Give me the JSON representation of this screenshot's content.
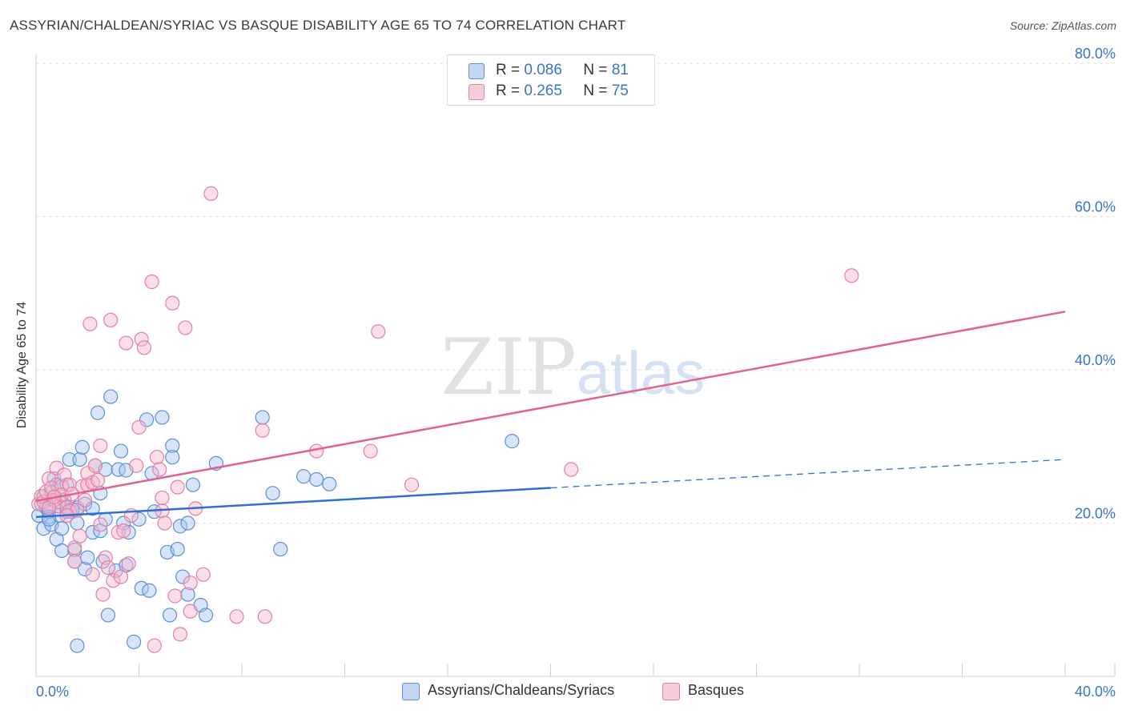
{
  "title": "ASSYRIAN/CHALDEAN/SYRIAC VS BASQUE DISABILITY AGE 65 TO 74 CORRELATION CHART",
  "source": "Source: ZipAtlas.com",
  "watermark": {
    "zip": "ZIP",
    "atlas": "atlas"
  },
  "legend": {
    "rows": [
      {
        "r_label": "R =",
        "r_value": "0.086",
        "n_label": "N =",
        "n_value": "81"
      },
      {
        "r_label": "R =",
        "r_value": "0.265",
        "n_label": "N =",
        "n_value": "75"
      }
    ]
  },
  "bottom_legend": {
    "series1": "Assyrians/Chaldeans/Syriacs",
    "series2": "Basques"
  },
  "colors": {
    "blue_fill": "#a8c6f0",
    "blue_stroke": "#5b8fd8",
    "blue_line": "#2f6fcf",
    "pink_fill": "#f6b8cc",
    "pink_stroke": "#e57fa1",
    "pink_line": "#e0628f",
    "axis_text": "#3b73c9",
    "grid": "#e0e0e0"
  },
  "chart_data": {
    "type": "scatter",
    "title": "ASSYRIAN/CHALDEAN/SYRIAC VS BASQUE DISABILITY AGE 65 TO 74 CORRELATION CHART",
    "xlabel": "",
    "ylabel": "Disability Age 65 to 74",
    "xlim": [
      0,
      40
    ],
    "ylim": [
      0,
      82
    ],
    "x_tick_labels": [
      "0.0%",
      "40.0%"
    ],
    "y_ticks": [
      20,
      40,
      60,
      80
    ],
    "y_tick_labels": [
      "20.0%",
      "40.0%",
      "60.0%",
      "80.0%"
    ],
    "grid": true,
    "series": [
      {
        "name": "Assyrians/Chaldeans/Syriacs",
        "R": 0.086,
        "N": 81,
        "trend": {
          "x0": 0,
          "y0": 20.8,
          "x1": 20,
          "y1": 24.6,
          "dashed_to_x": 40,
          "dashed_to_y": 28.3
        },
        "points": [
          [
            0.1,
            21
          ],
          [
            0.2,
            22.5
          ],
          [
            0.3,
            19.3
          ],
          [
            0.3,
            23.5
          ],
          [
            0.4,
            22
          ],
          [
            0.5,
            21.5
          ],
          [
            0.5,
            20.8
          ],
          [
            0.6,
            19.8
          ],
          [
            0.7,
            23
          ],
          [
            0.7,
            25.8
          ],
          [
            0.8,
            25
          ],
          [
            0.8,
            17.9
          ],
          [
            0.9,
            21
          ],
          [
            1,
            19.3
          ],
          [
            1,
            16.4
          ],
          [
            1.2,
            21.5
          ],
          [
            1.2,
            22
          ],
          [
            1.2,
            25
          ],
          [
            1.3,
            28.3
          ],
          [
            1.4,
            21.5
          ],
          [
            1.5,
            16.5
          ],
          [
            1.5,
            15
          ],
          [
            1.6,
            22
          ],
          [
            1.6,
            20
          ],
          [
            1.7,
            28.3
          ],
          [
            1.8,
            29.9
          ],
          [
            1.9,
            22.5
          ],
          [
            1.9,
            14
          ],
          [
            2,
            15.5
          ],
          [
            2.2,
            18.8
          ],
          [
            2.2,
            21.9
          ],
          [
            2.3,
            27.5
          ],
          [
            2.4,
            34.4
          ],
          [
            2.5,
            19
          ],
          [
            2.5,
            23.9
          ],
          [
            2.6,
            15
          ],
          [
            2.7,
            27
          ],
          [
            2.8,
            8
          ],
          [
            2.9,
            36.5
          ],
          [
            3.1,
            13.8
          ],
          [
            3.2,
            27
          ],
          [
            3.3,
            29.4
          ],
          [
            3.4,
            20
          ],
          [
            3.5,
            14.5
          ],
          [
            3.5,
            26.9
          ],
          [
            3.6,
            18.8
          ],
          [
            3.8,
            4.5
          ],
          [
            4,
            20.5
          ],
          [
            4.1,
            11.5
          ],
          [
            4.3,
            33.5
          ],
          [
            4.4,
            11.2
          ],
          [
            4.5,
            26.5
          ],
          [
            4.6,
            21.5
          ],
          [
            4.9,
            33.8
          ],
          [
            5.1,
            16.2
          ],
          [
            5.2,
            8
          ],
          [
            5.3,
            30.1
          ],
          [
            5.3,
            28.6
          ],
          [
            5.5,
            16.6
          ],
          [
            5.6,
            19.6
          ],
          [
            5.7,
            13
          ],
          [
            5.9,
            10.7
          ],
          [
            5.9,
            20
          ],
          [
            6.1,
            25
          ],
          [
            6.4,
            9.3
          ],
          [
            6.6,
            8
          ],
          [
            7,
            27.8
          ],
          [
            8.8,
            33.8
          ],
          [
            9.2,
            23.9
          ],
          [
            9.5,
            16.6
          ],
          [
            10.4,
            26.1
          ],
          [
            10.9,
            25.7
          ],
          [
            11.4,
            25.1
          ],
          [
            18.5,
            30.7
          ],
          [
            0.5,
            20.5
          ],
          [
            0.6,
            24
          ],
          [
            0.9,
            22.8
          ],
          [
            1.1,
            23
          ],
          [
            1.4,
            21.8
          ],
          [
            2.7,
            20.5
          ],
          [
            1.6,
            4
          ]
        ]
      },
      {
        "name": "Basques",
        "R": 0.265,
        "N": 75,
        "trend": {
          "x0": 0,
          "y0": 22.9,
          "x1": 40,
          "y1": 47.6
        },
        "points": [
          [
            0.1,
            22.5
          ],
          [
            0.2,
            23.5
          ],
          [
            0.3,
            22.8
          ],
          [
            0.4,
            24.1
          ],
          [
            0.5,
            25.8
          ],
          [
            0.6,
            24.6
          ],
          [
            0.7,
            23
          ],
          [
            0.8,
            27.2
          ],
          [
            0.9,
            22.2
          ],
          [
            1,
            24.8
          ],
          [
            1,
            23.7
          ],
          [
            1.1,
            26.3
          ],
          [
            1.2,
            22.1
          ],
          [
            1.3,
            25
          ],
          [
            1.3,
            21.6
          ],
          [
            1.4,
            23.8
          ],
          [
            1.5,
            16.8
          ],
          [
            1.5,
            15
          ],
          [
            1.6,
            21.7
          ],
          [
            1.7,
            18.3
          ],
          [
            1.8,
            24.8
          ],
          [
            2,
            26.5
          ],
          [
            2,
            25
          ],
          [
            2.1,
            46
          ],
          [
            2.2,
            25.3
          ],
          [
            2.2,
            13.3
          ],
          [
            2.3,
            27.5
          ],
          [
            2.4,
            25.6
          ],
          [
            2.5,
            30.1
          ],
          [
            2.6,
            10.7
          ],
          [
            2.7,
            15.5
          ],
          [
            2.8,
            14.2
          ],
          [
            2.9,
            46.5
          ],
          [
            3,
            12.5
          ],
          [
            3.2,
            18.8
          ],
          [
            3.3,
            13
          ],
          [
            3.4,
            19
          ],
          [
            3.5,
            43.5
          ],
          [
            3.6,
            14.7
          ],
          [
            3.9,
            27.5
          ],
          [
            4,
            32.5
          ],
          [
            4.1,
            44
          ],
          [
            4.2,
            42.9
          ],
          [
            4.5,
            51.5
          ],
          [
            4.6,
            4
          ],
          [
            4.7,
            28.6
          ],
          [
            4.8,
            27
          ],
          [
            4.9,
            21.6
          ],
          [
            4.9,
            23.3
          ],
          [
            5,
            20
          ],
          [
            5.3,
            48.7
          ],
          [
            5.4,
            10.5
          ],
          [
            5.5,
            24.7
          ],
          [
            5.6,
            5.5
          ],
          [
            5.8,
            45.5
          ],
          [
            6,
            12.2
          ],
          [
            6,
            8.5
          ],
          [
            6.2,
            21.9
          ],
          [
            6.5,
            13.3
          ],
          [
            6.8,
            63
          ],
          [
            7.8,
            7.8
          ],
          [
            8.8,
            32.1
          ],
          [
            8.9,
            7.8
          ],
          [
            10.9,
            29.4
          ],
          [
            13,
            29.4
          ],
          [
            13.3,
            45
          ],
          [
            14.6,
            25
          ],
          [
            20.8,
            27
          ],
          [
            31.7,
            52.3
          ],
          [
            0.5,
            22
          ],
          [
            0.7,
            23.4
          ],
          [
            1.2,
            21
          ],
          [
            1.9,
            23
          ],
          [
            2.5,
            19.8
          ],
          [
            3.7,
            21
          ]
        ]
      }
    ]
  }
}
